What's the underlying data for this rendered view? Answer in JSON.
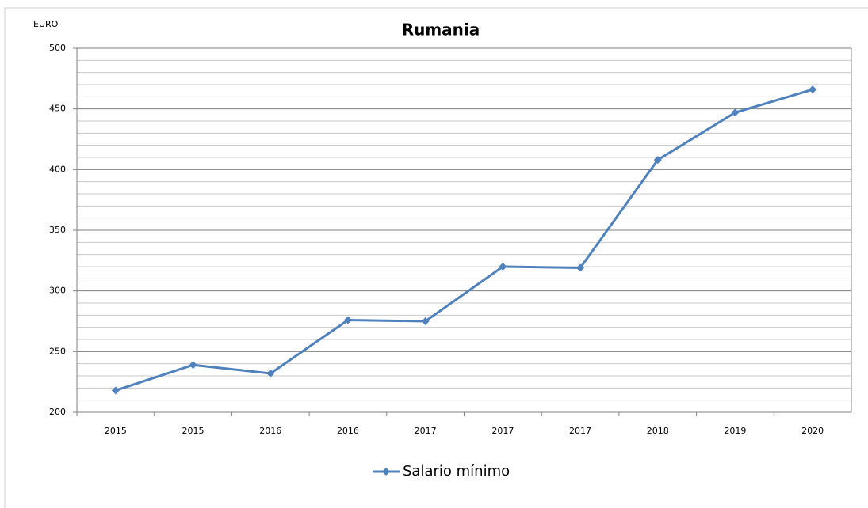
{
  "chart_data": {
    "type": "line",
    "title": "Rumania",
    "y_label": "EURO",
    "categories": [
      "2015",
      "2015",
      "2016",
      "2016",
      "2017",
      "2017",
      "2017",
      "2018",
      "2019",
      "2020"
    ],
    "series": [
      {
        "name": "Salario mínimo",
        "color": "#4f81bd",
        "values": [
          218,
          239,
          232,
          276,
          275,
          320,
          319,
          408,
          447,
          466
        ]
      }
    ],
    "ylim": [
      200,
      500
    ],
    "yticks": [
      200,
      250,
      300,
      350,
      400,
      450,
      500
    ],
    "yminorticks": [
      210,
      220,
      230,
      240,
      260,
      270,
      280,
      290,
      310,
      320,
      330,
      340,
      360,
      370,
      380,
      390,
      410,
      420,
      430,
      440,
      460,
      470,
      480,
      490
    ],
    "grid": true,
    "legend": "bottom"
  }
}
